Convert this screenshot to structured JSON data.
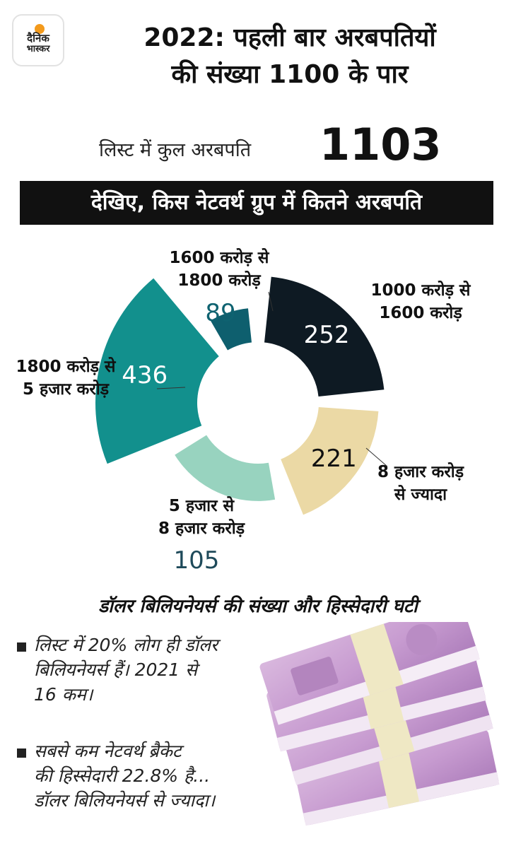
{
  "logo": {
    "line1": "दैनिक",
    "line2": "भास्कर"
  },
  "title_line1": "2022: पहली बार अरबपतियों",
  "title_line2": "की संख्या 1100 के पार",
  "total": {
    "label": "लिस्ट में कुल अरबपति",
    "value": "1103"
  },
  "banner": "देखिए, किस नेटवर्थ ग्रुप में कितने अरबपति",
  "chart_data": {
    "type": "pie",
    "variant": "radial-donut (slice radius grows with value)",
    "total": 1103,
    "categories": [
      "1000 करोड़ से 1600 करोड़",
      "8 हजार करोड़ से ज्यादा",
      "5 हजार से 8 हजार करोड़",
      "1800 करोड़ से 5 हजार करोड़",
      "1600 करोड़ से 1800 करोड़"
    ],
    "values": [
      252,
      221,
      105,
      436,
      89
    ],
    "colors": [
      "#0e1a23",
      "#ebd9a5",
      "#98d3bf",
      "#12908d",
      "#0e5f6e"
    ],
    "slices": [
      {
        "label1": "1000 करोड़ से",
        "label2": "1600 करोड़",
        "value": 252,
        "color": "#0e1a23",
        "value_color": "#ffffff"
      },
      {
        "label1": "8 हजार करोड़",
        "label2": "से ज्यादा",
        "value": 221,
        "color": "#ebd9a5",
        "value_color": "#111111"
      },
      {
        "label1": "5 हजार से",
        "label2": "8 हजार करोड़",
        "value": 105,
        "color": "#98d3bf",
        "value_color": "#1e4a5a"
      },
      {
        "label1": "1800 करोड़ से",
        "label2": "5 हजार करोड़",
        "value": 436,
        "color": "#12908d",
        "value_color": "#ffffff"
      },
      {
        "label1": "1600 करोड़ से",
        "label2": "1800 करोड़",
        "value": 89,
        "color": "#0e5f6e",
        "value_color": "#0e6270"
      }
    ]
  },
  "section_heading": "डॉलर बिलियनेयर्स की संख्या और हिस्सेदारी घटी",
  "notes": [
    {
      "lines": [
        "लिस्ट में 20% लोग ही डॉलर",
        "बिलियनेयर्स हैं। 2021 से",
        "16 कम।"
      ]
    },
    {
      "lines": [
        "सबसे कम नेटवर्थ ब्रैकेट",
        "की हिस्सेदारी 22.8% है...",
        "डॉलर बिलियनेयर्स से ज्यादा।"
      ]
    }
  ],
  "image": {
    "name": "stack of ₹2000 currency notes",
    "note_value": "₹2000"
  }
}
